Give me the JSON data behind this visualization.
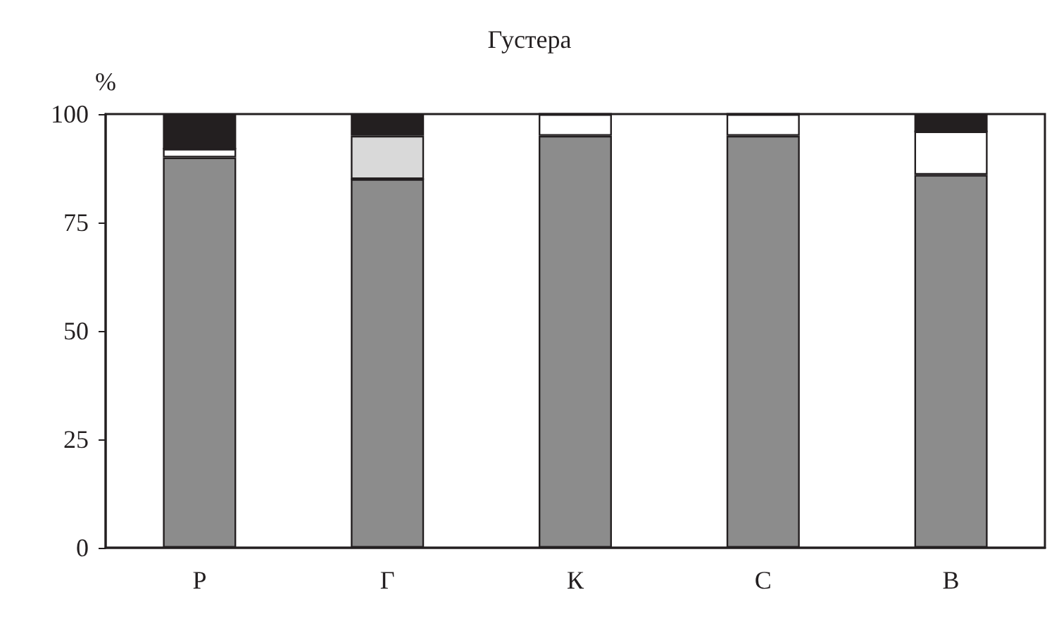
{
  "chart_data": {
    "type": "bar",
    "title": "Густера",
    "ylabel": "%",
    "stacked": true,
    "categories": [
      "Р",
      "Г",
      "К",
      "С",
      "В"
    ],
    "series": [
      {
        "color": "#8c8c8c",
        "values": [
          90,
          85,
          95,
          95,
          86
        ]
      },
      {
        "color": "#ffffff",
        "values": [
          2,
          0,
          5,
          5,
          10
        ]
      },
      {
        "color": "#d9d9d9",
        "values": [
          0,
          10,
          0,
          0,
          0
        ]
      },
      {
        "color": "#231f20",
        "values": [
          8,
          5,
          0,
          0,
          4
        ]
      }
    ],
    "ylim": [
      0,
      100
    ],
    "yticks": [
      0,
      25,
      50,
      75,
      100
    ],
    "grid": false
  }
}
